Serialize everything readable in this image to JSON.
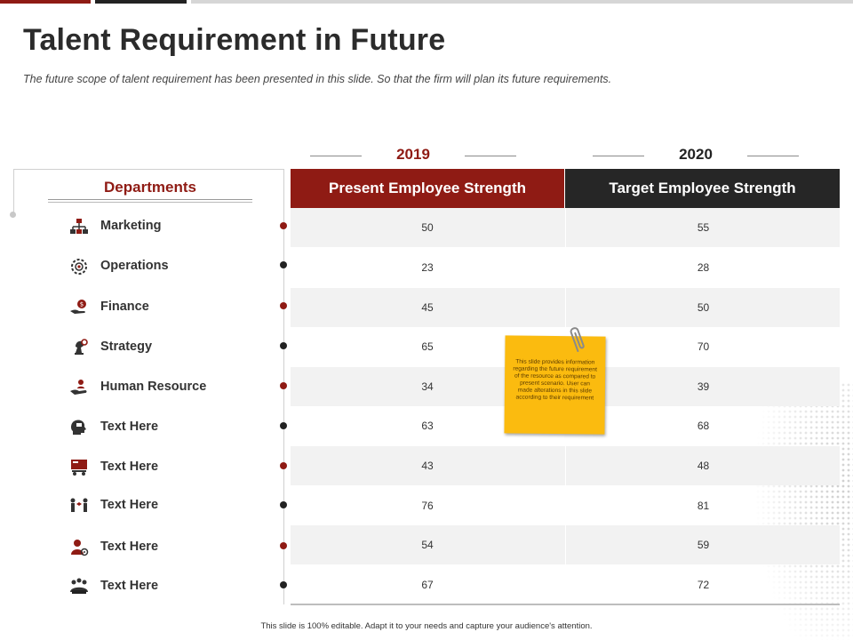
{
  "slide": {
    "title": "Talent Requirement in Future",
    "subtitle": "The  future scope of talent requirement has been presented  in this slide. So that the firm will plan its future requirements.",
    "footer": "This slide is 100% editable.  Adapt it to your needs and capture your audience's attention."
  },
  "columns": {
    "year_2019": "2019",
    "year_2020": "2020",
    "present_label": "Present Employee Strength",
    "target_label": "Target Employee Strength"
  },
  "departments_header": "Departments",
  "rows": [
    {
      "name": "Marketing",
      "icon": "org-chart-icon",
      "present": "50",
      "target": "55"
    },
    {
      "name": "Operations",
      "icon": "gear-target-icon",
      "present": "23",
      "target": "28"
    },
    {
      "name": "Finance",
      "icon": "money-hand-icon",
      "present": "45",
      "target": "50"
    },
    {
      "name": "Strategy",
      "icon": "chess-knight-icon",
      "present": "65",
      "target": "70"
    },
    {
      "name": "Human Resource",
      "icon": "hand-person-icon",
      "present": "34",
      "target": "39"
    },
    {
      "name": "Text Here",
      "icon": "head-chat-icon",
      "present": "63",
      "target": "68"
    },
    {
      "name": "Text Here",
      "icon": "presentation-board-icon",
      "present": "43",
      "target": "48"
    },
    {
      "name": "Text Here",
      "icon": "people-connect-icon",
      "present": "76",
      "target": "81"
    },
    {
      "name": "Text Here",
      "icon": "person-target-icon",
      "present": "54",
      "target": "59"
    },
    {
      "name": "Text Here",
      "icon": "team-meeting-icon",
      "present": "67",
      "target": "72"
    }
  ],
  "sticky_note": {
    "text": "This slide provides information regarding the future requirement of the resource as compared to present scenario. User can made alterations  in this slide according  to their requirement"
  },
  "colors": {
    "accent_red": "#8f1b14",
    "dark": "#262626",
    "note_yellow": "#fbbb0f"
  }
}
